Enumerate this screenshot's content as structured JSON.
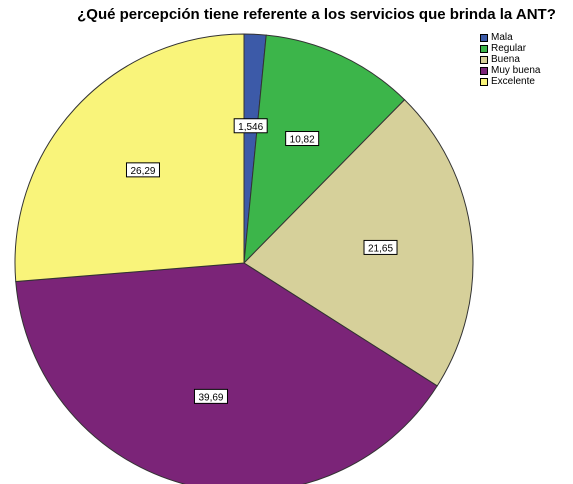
{
  "chart_data": {
    "type": "pie",
    "title": "¿Qué percepción tiene referente a los servicios que brinda la ANT?",
    "categories": [
      "Mala",
      "Regular",
      "Buena",
      "Muy buena",
      "Excelente"
    ],
    "values": [
      1.546,
      10.82,
      21.65,
      39.69,
      26.29
    ],
    "labels": [
      "1,546",
      "10,82",
      "21,65",
      "39,69",
      "26,29"
    ],
    "colors": [
      "#3c5aa8",
      "#3cb54a",
      "#d6d09a",
      "#7b2478",
      "#f9f47a"
    ],
    "legend_position": "top-right",
    "start": "12 o'clock",
    "direction": "clockwise"
  }
}
